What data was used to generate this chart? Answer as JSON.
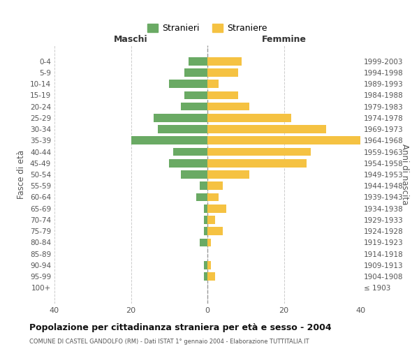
{
  "age_groups": [
    "0-4",
    "5-9",
    "10-14",
    "15-19",
    "20-24",
    "25-29",
    "30-34",
    "35-39",
    "40-44",
    "45-49",
    "50-54",
    "55-59",
    "60-64",
    "65-69",
    "70-74",
    "75-79",
    "80-84",
    "85-89",
    "90-94",
    "95-99",
    "100+"
  ],
  "birth_years": [
    "1999-2003",
    "1994-1998",
    "1989-1993",
    "1984-1988",
    "1979-1983",
    "1974-1978",
    "1969-1973",
    "1964-1968",
    "1959-1963",
    "1954-1958",
    "1949-1953",
    "1944-1948",
    "1939-1943",
    "1934-1938",
    "1929-1933",
    "1924-1928",
    "1919-1923",
    "1914-1918",
    "1909-1913",
    "1904-1908",
    "≤ 1903"
  ],
  "maschi": [
    5,
    6,
    10,
    6,
    7,
    14,
    13,
    20,
    9,
    10,
    7,
    2,
    3,
    1,
    1,
    1,
    2,
    0,
    1,
    1,
    0
  ],
  "femmine": [
    9,
    8,
    3,
    8,
    11,
    22,
    31,
    40,
    27,
    26,
    11,
    4,
    3,
    5,
    2,
    4,
    1,
    0,
    1,
    2,
    0
  ],
  "color_maschi": "#6aaa64",
  "color_femmine": "#f5c242",
  "background_color": "#ffffff",
  "grid_color": "#cccccc",
  "title": "Popolazione per cittadinanza straniera per età e sesso - 2004",
  "subtitle": "COMUNE DI CASTEL GANDOLFO (RM) - Dati ISTAT 1° gennaio 2004 - Elaborazione TUTTITALIA.IT",
  "xlabel_left": "Maschi",
  "xlabel_right": "Femmine",
  "ylabel_left": "Fasce di età",
  "ylabel_right": "Anni di nascita",
  "xlim": 40,
  "legend_stranieri": "Stranieri",
  "legend_straniere": "Straniere"
}
